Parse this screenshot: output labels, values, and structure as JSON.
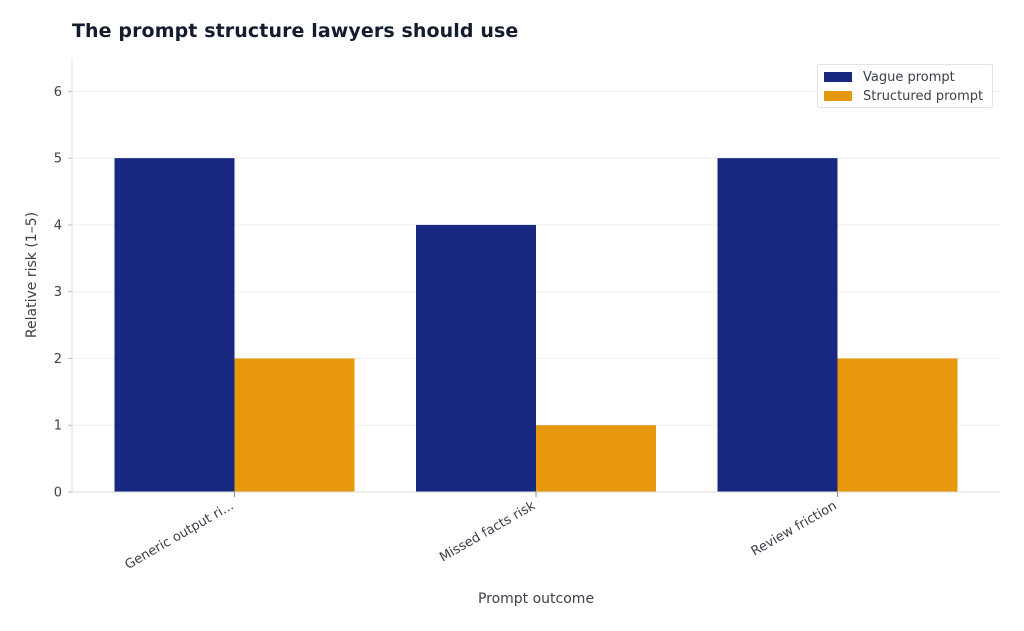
{
  "chart_data": {
    "type": "bar",
    "title": "The prompt structure lawyers should use",
    "xlabel": "Prompt outcome",
    "ylabel": "Relative risk (1–5)",
    "categories": [
      "Generic output ri...",
      "Missed facts risk",
      "Review friction"
    ],
    "series": [
      {
        "name": "Vague prompt",
        "values": [
          5,
          4,
          5
        ],
        "color": "#182880"
      },
      {
        "name": "Structured prompt",
        "values": [
          2,
          1,
          2
        ],
        "color": "#e8980c"
      }
    ],
    "ylim": [
      0,
      6.5
    ],
    "yticks": [
      0,
      1,
      2,
      3,
      4,
      5,
      6
    ],
    "grid": true,
    "legend_position": "top-right"
  }
}
